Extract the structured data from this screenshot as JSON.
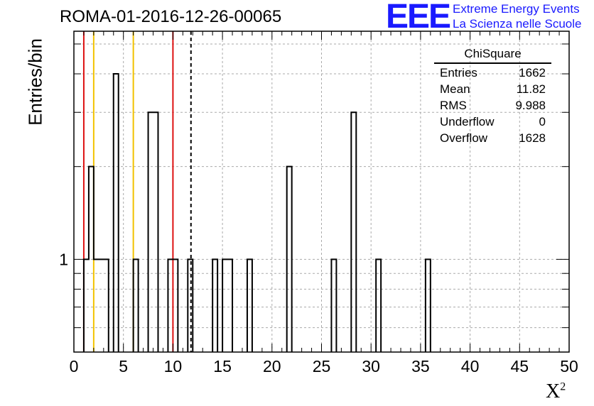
{
  "header": {
    "title": "ROMA-01-2016-12-26-00065",
    "logo_text": "EEE",
    "logo_line1": "Extreme Energy Events",
    "logo_line2": "La Scienza nelle Scuole"
  },
  "stats": {
    "title": "ChiSquare",
    "rows": [
      {
        "label": "Entries",
        "value": "1662"
      },
      {
        "label": "Mean",
        "value": "11.82"
      },
      {
        "label": "RMS",
        "value": "9.988"
      },
      {
        "label": "Underflow",
        "value": "0"
      },
      {
        "label": "Overflow",
        "value": "1628"
      }
    ]
  },
  "chart_data": {
    "type": "bar",
    "title": "ROMA-01-2016-12-26-00065",
    "xlabel": "X",
    "xlabel_sup": "2",
    "ylabel": "Entries/bin",
    "xlim": [
      0,
      50
    ],
    "ylim_log": [
      0.5,
      5.5
    ],
    "log_y": true,
    "grid": true,
    "bin_width": 0.5,
    "x_ticks": [
      0,
      5,
      10,
      15,
      20,
      25,
      30,
      35,
      40,
      45,
      50
    ],
    "y_tick_labels": [
      {
        "value": 1,
        "label": "1"
      }
    ],
    "bins": [
      {
        "x": 1.0,
        "count": 1
      },
      {
        "x": 1.5,
        "count": 2
      },
      {
        "x": 2.0,
        "count": 1
      },
      {
        "x": 2.5,
        "count": 1
      },
      {
        "x": 3.0,
        "count": 1
      },
      {
        "x": 4.0,
        "count": 4
      },
      {
        "x": 6.0,
        "count": 1
      },
      {
        "x": 7.5,
        "count": 3
      },
      {
        "x": 8.0,
        "count": 3
      },
      {
        "x": 9.5,
        "count": 1
      },
      {
        "x": 10.0,
        "count": 1
      },
      {
        "x": 11.5,
        "count": 1
      },
      {
        "x": 14.0,
        "count": 1
      },
      {
        "x": 15.0,
        "count": 1
      },
      {
        "x": 15.5,
        "count": 1
      },
      {
        "x": 17.5,
        "count": 1
      },
      {
        "x": 21.5,
        "count": 2
      },
      {
        "x": 26.0,
        "count": 1
      },
      {
        "x": 28.0,
        "count": 3
      },
      {
        "x": 30.5,
        "count": 1
      },
      {
        "x": 35.5,
        "count": 1
      }
    ],
    "vlines": [
      {
        "x": 1.0,
        "color": "#dd1111",
        "style": "solid"
      },
      {
        "x": 2.0,
        "color": "#f2c200",
        "style": "solid"
      },
      {
        "x": 6.0,
        "color": "#f2c200",
        "style": "solid"
      },
      {
        "x": 10.0,
        "color": "#dd1111",
        "style": "solid"
      },
      {
        "x": 11.82,
        "color": "#000000",
        "style": "dashed"
      }
    ]
  }
}
